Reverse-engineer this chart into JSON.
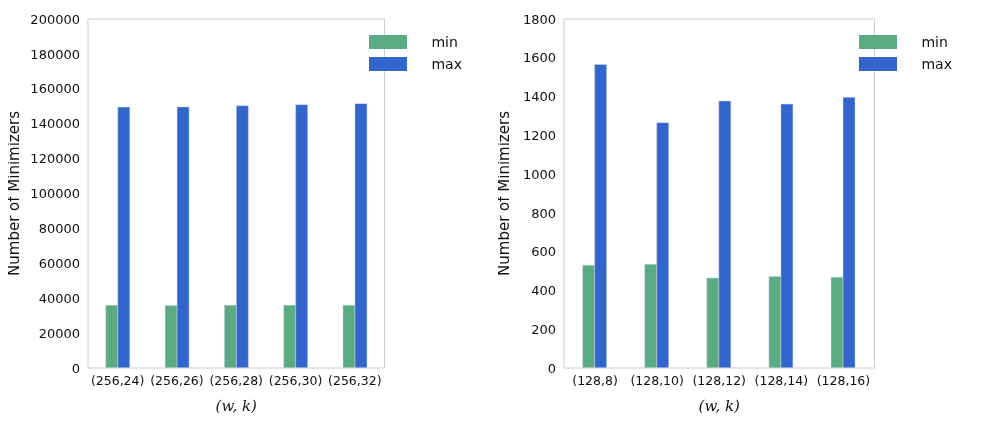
{
  "chart_data": [
    {
      "type": "bar",
      "xlabel": "(w, k)",
      "ylabel": "Number of Minimizers",
      "categories": [
        "(256,24)",
        "(256,26)",
        "(256,28)",
        "(256,30)",
        "(256,32)"
      ],
      "series": [
        {
          "name": "min",
          "color": "#5aab82",
          "values": [
            36000,
            35800,
            36000,
            36000,
            36000
          ]
        },
        {
          "name": "max",
          "color": "#3266cc",
          "values": [
            149500,
            149600,
            150300,
            150900,
            151500
          ]
        }
      ],
      "ylim": [
        0,
        200000
      ],
      "yticks": [
        0,
        20000,
        40000,
        60000,
        80000,
        100000,
        120000,
        140000,
        160000,
        180000,
        200000
      ],
      "grid": false,
      "legend": "top right"
    },
    {
      "type": "bar",
      "xlabel": "(w, k)",
      "ylabel": "Number of Minimizers",
      "categories": [
        "(128,8)",
        "(128,10)",
        "(128,12)",
        "(128,14)",
        "(128,16)"
      ],
      "series": [
        {
          "name": "min",
          "color": "#5aab82",
          "values": [
            530,
            535,
            464,
            472,
            468
          ]
        },
        {
          "name": "max",
          "color": "#3266cc",
          "values": [
            1565,
            1265,
            1377,
            1361,
            1396
          ]
        }
      ],
      "ylim": [
        0,
        1800
      ],
      "yticks": [
        0,
        200,
        400,
        600,
        800,
        1000,
        1200,
        1400,
        1600,
        1800
      ],
      "grid": false,
      "legend": "top right"
    }
  ]
}
